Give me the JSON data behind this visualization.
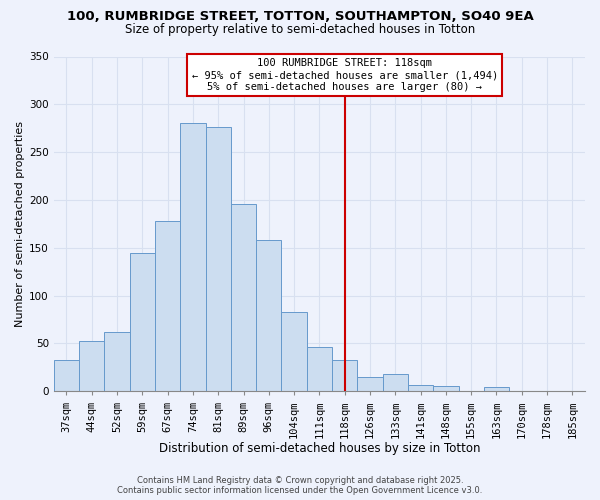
{
  "title_line1": "100, RUMBRIDGE STREET, TOTTON, SOUTHAMPTON, SO40 9EA",
  "title_line2": "Size of property relative to semi-detached houses in Totton",
  "xlabel": "Distribution of semi-detached houses by size in Totton",
  "ylabel": "Number of semi-detached properties",
  "categories": [
    "37sqm",
    "44sqm",
    "52sqm",
    "59sqm",
    "67sqm",
    "74sqm",
    "81sqm",
    "89sqm",
    "96sqm",
    "104sqm",
    "111sqm",
    "118sqm",
    "126sqm",
    "133sqm",
    "141sqm",
    "148sqm",
    "155sqm",
    "163sqm",
    "170sqm",
    "178sqm",
    "185sqm"
  ],
  "values": [
    33,
    53,
    62,
    145,
    178,
    281,
    276,
    196,
    158,
    83,
    46,
    33,
    15,
    18,
    7,
    6,
    0,
    5,
    0,
    0,
    0
  ],
  "bar_color": "#ccddf0",
  "bar_edge_color": "#6699cc",
  "highlight_index": 11,
  "vline_color": "#cc0000",
  "annotation_title": "100 RUMBRIDGE STREET: 118sqm",
  "annotation_line1": "← 95% of semi-detached houses are smaller (1,494)",
  "annotation_line2": "5% of semi-detached houses are larger (80) →",
  "annotation_box_color": "#ffffff",
  "annotation_box_edge": "#cc0000",
  "ylim": [
    0,
    350
  ],
  "yticks": [
    0,
    50,
    100,
    150,
    200,
    250,
    300,
    350
  ],
  "footer_line1": "Contains HM Land Registry data © Crown copyright and database right 2025.",
  "footer_line2": "Contains public sector information licensed under the Open Government Licence v3.0.",
  "background_color": "#eef2fc",
  "grid_color": "#d8e0f0",
  "title_fontsize": 9.5,
  "subtitle_fontsize": 8.5,
  "xlabel_fontsize": 8.5,
  "ylabel_fontsize": 8.0,
  "tick_fontsize": 7.5,
  "annotation_fontsize": 7.5,
  "footer_fontsize": 6.0
}
